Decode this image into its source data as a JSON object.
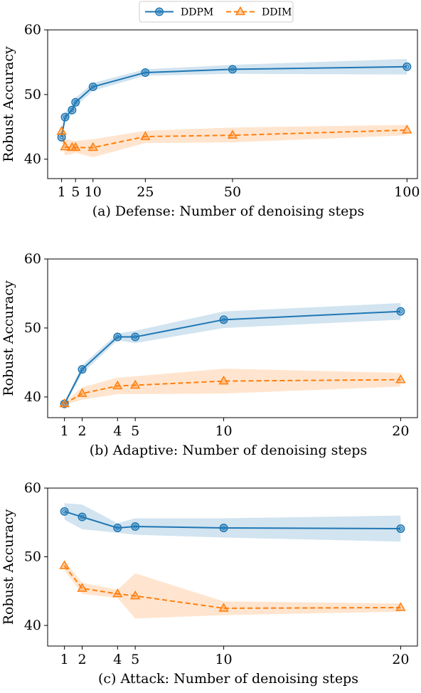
{
  "legend": {
    "entries": [
      {
        "label": "DDPM",
        "color": "#1f77b4",
        "marker": "circle",
        "line": "solid"
      },
      {
        "label": "DDIM",
        "color": "#ff7f0e",
        "marker": "triangle",
        "line": "dashed"
      }
    ]
  },
  "chart_data": [
    {
      "type": "line",
      "xlabel": "(a) Defense: Number of denoising steps",
      "ylabel": "Robust Accuracy",
      "ylim": [
        37,
        60
      ],
      "xlim": [
        -3,
        103
      ],
      "yticks": [
        40,
        50,
        60
      ],
      "xticks": [
        1,
        5,
        10,
        25,
        50,
        100
      ],
      "grid": false,
      "series": [
        {
          "name": "DDPM",
          "color": "#1f77b4",
          "marker": "circle",
          "dash": false,
          "x": [
            1,
            2,
            4,
            5,
            10,
            25,
            50,
            100
          ],
          "y": [
            43.4,
            46.5,
            47.6,
            48.8,
            51.2,
            53.4,
            53.9,
            54.3
          ],
          "lower": [
            42.8,
            45.8,
            46.9,
            48.1,
            50.6,
            52.9,
            53.2,
            53.1
          ],
          "upper": [
            44.0,
            47.2,
            48.3,
            49.5,
            51.8,
            53.9,
            54.6,
            55.5
          ]
        },
        {
          "name": "DDIM",
          "color": "#ff7f0e",
          "marker": "triangle",
          "dash": true,
          "x": [
            1,
            2,
            4,
            5,
            10,
            25,
            50,
            100
          ],
          "y": [
            44.3,
            41.9,
            41.8,
            41.8,
            41.8,
            43.5,
            43.7,
            44.5
          ],
          "lower": [
            42.8,
            40.6,
            40.8,
            41.0,
            40.3,
            42.5,
            42.6,
            43.7
          ],
          "upper": [
            45.5,
            43.2,
            42.9,
            42.8,
            43.1,
            44.4,
            44.9,
            45.3
          ]
        }
      ]
    },
    {
      "type": "line",
      "xlabel": "(b) Adaptive: Number of denoising steps",
      "ylabel": "Robust Accuracy",
      "ylim": [
        37,
        60
      ],
      "xlim": [
        0.05,
        20.95
      ],
      "yticks": [
        40,
        50,
        60
      ],
      "xticks": [
        1,
        2,
        4,
        5,
        10,
        20
      ],
      "grid": false,
      "series": [
        {
          "name": "DDPM",
          "color": "#1f77b4",
          "marker": "circle",
          "dash": false,
          "x": [
            1,
            2,
            4,
            5,
            10,
            20
          ],
          "y": [
            39.0,
            44.0,
            48.7,
            48.7,
            51.2,
            52.4
          ],
          "lower": [
            38.8,
            43.4,
            48.2,
            47.8,
            50.0,
            51.2
          ],
          "upper": [
            39.2,
            44.6,
            49.2,
            49.6,
            52.4,
            53.6
          ]
        },
        {
          "name": "DDIM",
          "color": "#ff7f0e",
          "marker": "triangle",
          "dash": true,
          "x": [
            1,
            2,
            4,
            5,
            10,
            20
          ],
          "y": [
            39.0,
            40.5,
            41.6,
            41.7,
            42.3,
            42.5
          ],
          "lower": [
            38.8,
            39.6,
            40.4,
            40.4,
            40.5,
            41.5
          ],
          "upper": [
            39.2,
            41.4,
            42.8,
            43.0,
            44.1,
            43.5
          ]
        }
      ]
    },
    {
      "type": "line",
      "xlabel": "(c) Attack: Number of denoising steps",
      "ylabel": "Robust Accuracy",
      "ylim": [
        37,
        60
      ],
      "xlim": [
        0.05,
        20.95
      ],
      "yticks": [
        40,
        50,
        60
      ],
      "xticks": [
        1,
        2,
        4,
        5,
        10,
        20
      ],
      "grid": false,
      "series": [
        {
          "name": "DDPM",
          "color": "#1f77b4",
          "marker": "circle",
          "dash": false,
          "x": [
            1,
            2,
            4,
            5,
            10,
            20
          ],
          "y": [
            56.6,
            55.8,
            54.2,
            54.4,
            54.2,
            54.1
          ],
          "lower": [
            55.4,
            54.0,
            53.5,
            53.2,
            52.8,
            52.2
          ],
          "upper": [
            57.8,
            57.6,
            54.9,
            55.6,
            55.6,
            56.0
          ]
        },
        {
          "name": "DDIM",
          "color": "#ff7f0e",
          "marker": "triangle",
          "dash": true,
          "x": [
            1,
            2,
            4,
            5,
            10,
            20
          ],
          "y": [
            48.7,
            45.4,
            44.6,
            44.3,
            42.5,
            42.6
          ],
          "lower": [
            48.0,
            44.6,
            44.0,
            41.0,
            41.5,
            42.0
          ],
          "upper": [
            49.4,
            46.2,
            45.2,
            47.6,
            43.5,
            43.2
          ]
        }
      ]
    }
  ]
}
